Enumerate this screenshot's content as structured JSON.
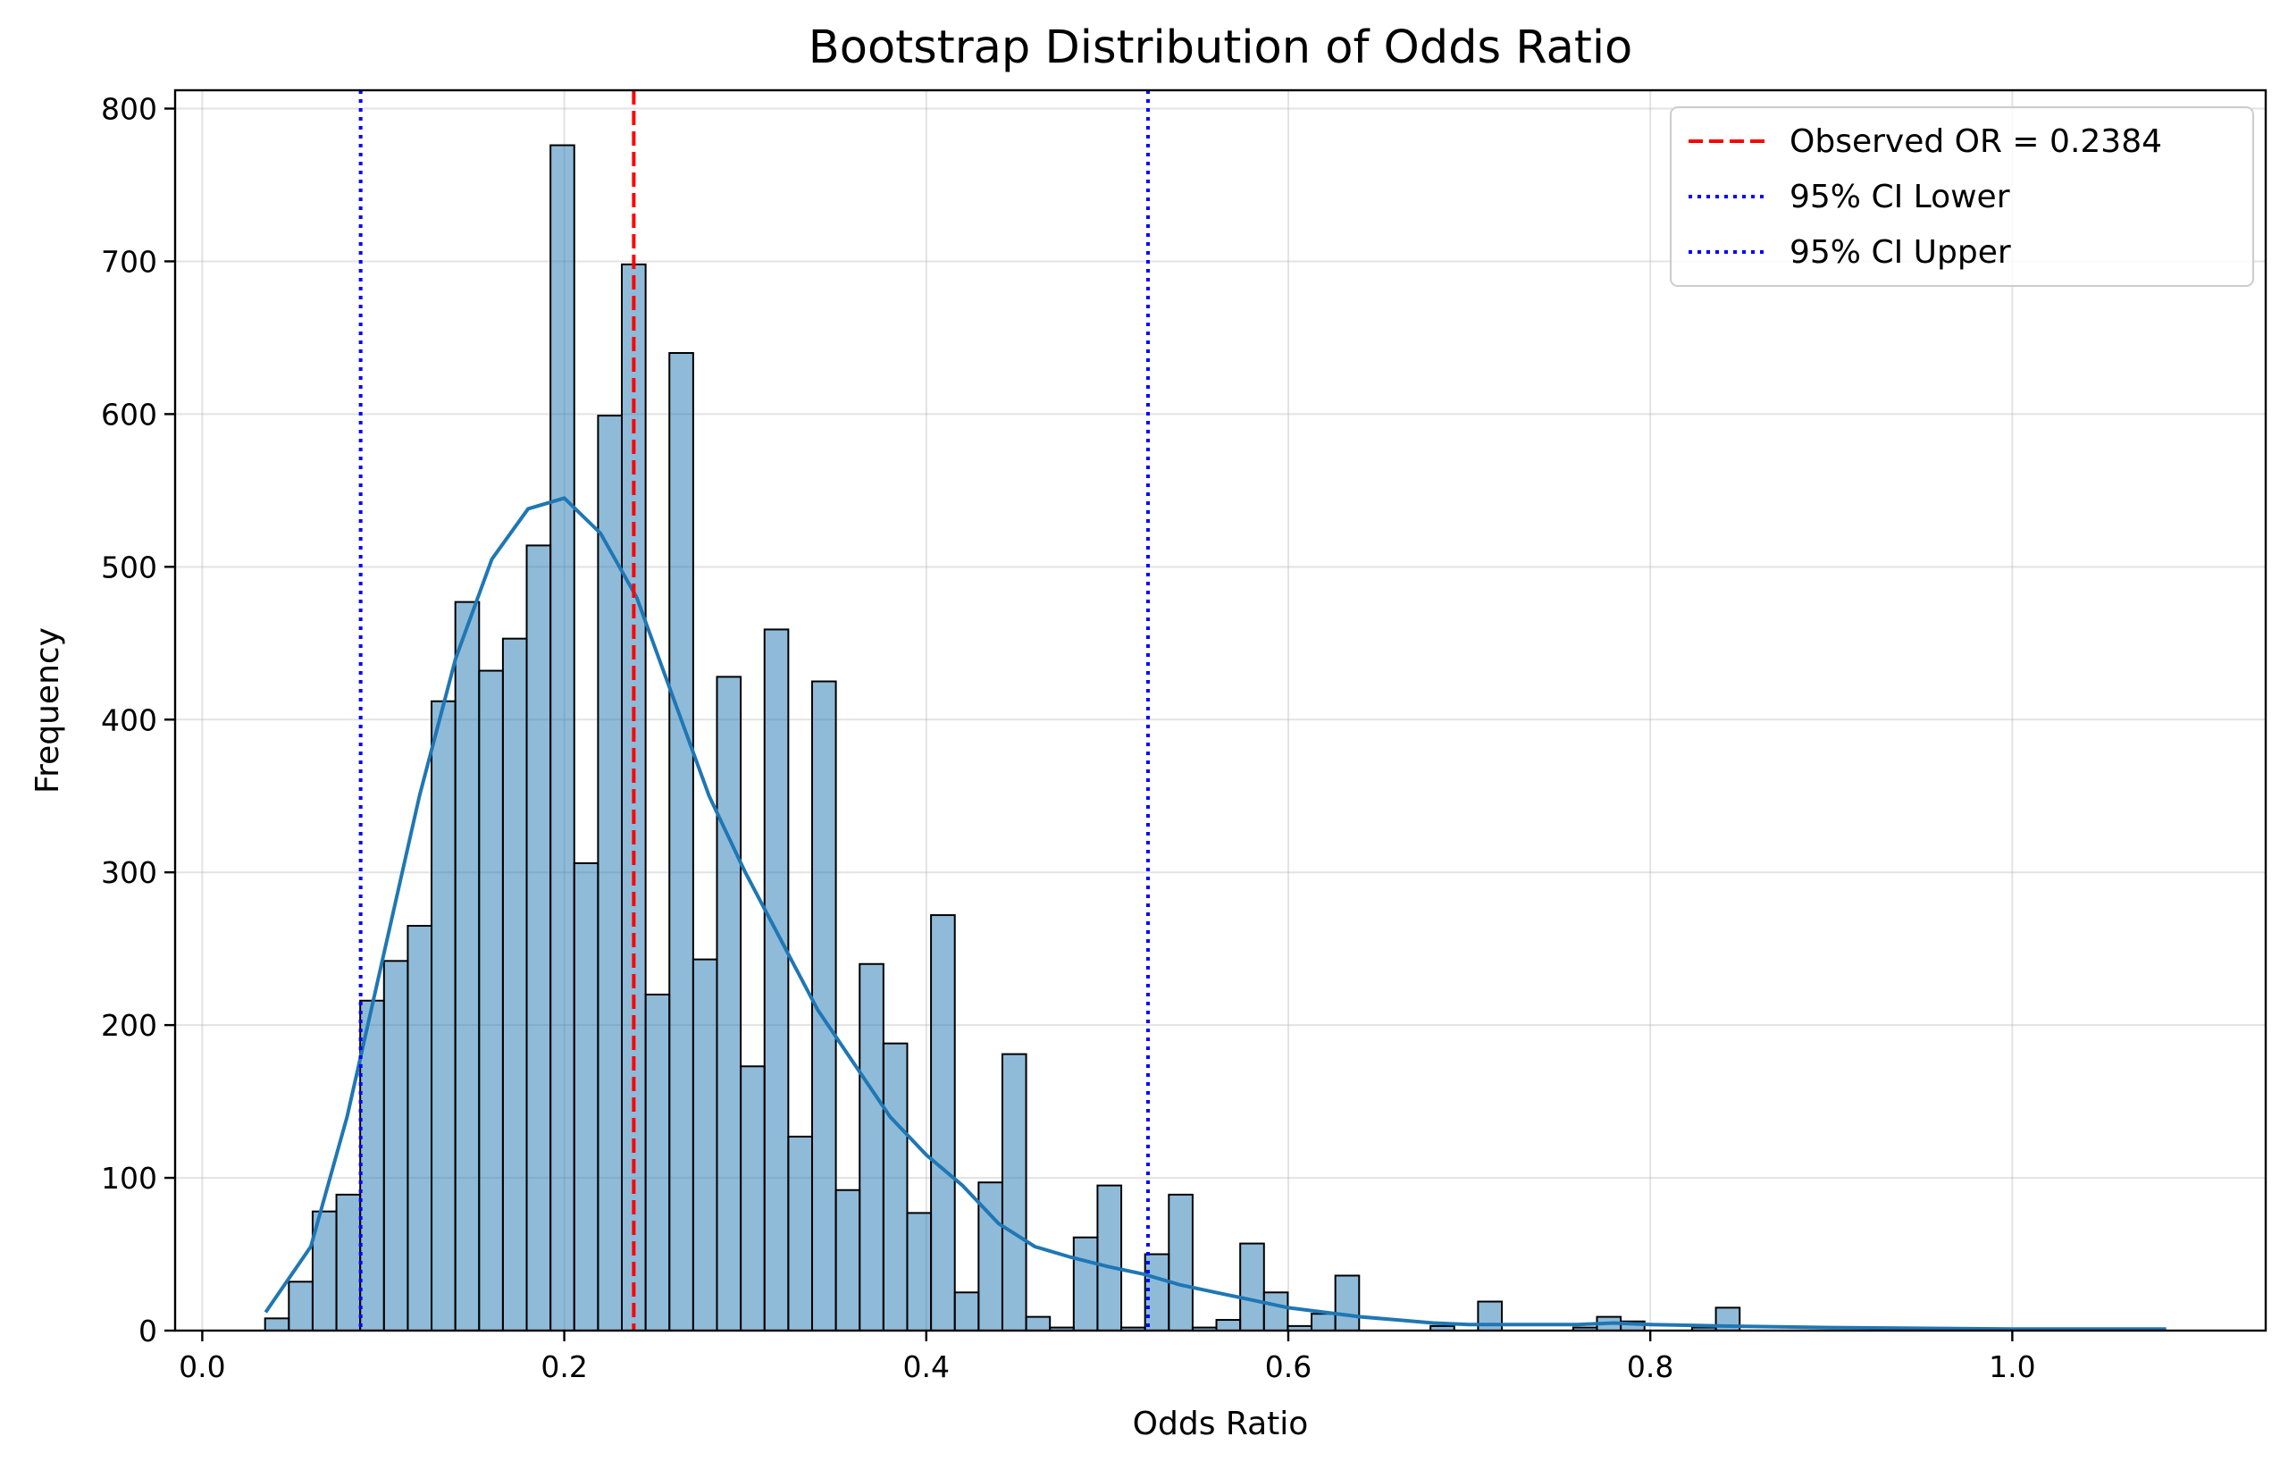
{
  "chart_data": {
    "type": "bar",
    "subtype": "histogram-with-kde",
    "title": "Bootstrap Distribution of Odds Ratio",
    "xlabel": "Odds Ratio",
    "ylabel": "Frequency",
    "xlim": [
      -0.015,
      1.14
    ],
    "ylim": [
      0,
      812
    ],
    "xticks": [
      0.0,
      0.2,
      0.4,
      0.6,
      0.8,
      1.0
    ],
    "xtick_labels": [
      "0.0",
      "0.2",
      "0.4",
      "0.6",
      "0.8",
      "1.0"
    ],
    "yticks": [
      0,
      100,
      200,
      300,
      400,
      500,
      600,
      700,
      800
    ],
    "ytick_labels": [
      "0",
      "100",
      "200",
      "300",
      "400",
      "500",
      "600",
      "700",
      "800"
    ],
    "grid": true,
    "legend_position": "top-right",
    "bar_color": "#1f77b4",
    "bins": {
      "start": 0.0347,
      "width": 0.01314,
      "counts": [
        8,
        32,
        78,
        89,
        216,
        242,
        265,
        412,
        477,
        432,
        453,
        514,
        776,
        306,
        599,
        698,
        220,
        640,
        243,
        428,
        173,
        459,
        127,
        425,
        92,
        240,
        188,
        77,
        272,
        25,
        97,
        181,
        9,
        2,
        61,
        95,
        2,
        50,
        89,
        2,
        7,
        57,
        25,
        3,
        11,
        36,
        0,
        0,
        0,
        3,
        0,
        19,
        0,
        0,
        0,
        2,
        9,
        6,
        0,
        0,
        2,
        15,
        0,
        0,
        0,
        0,
        0,
        0,
        0,
        0,
        0,
        0,
        0,
        0,
        0,
        0,
        0,
        0,
        0,
        0
      ]
    },
    "kde": {
      "color": "#1f77b4",
      "x": [
        0.035,
        0.06,
        0.08,
        0.1,
        0.12,
        0.14,
        0.16,
        0.18,
        0.2,
        0.22,
        0.24,
        0.26,
        0.28,
        0.3,
        0.32,
        0.34,
        0.36,
        0.38,
        0.4,
        0.42,
        0.44,
        0.46,
        0.48,
        0.5,
        0.52,
        0.54,
        0.56,
        0.58,
        0.6,
        0.62,
        0.64,
        0.66,
        0.68,
        0.7,
        0.72,
        0.74,
        0.76,
        0.78,
        0.8,
        0.84,
        0.9,
        1.0,
        1.085
      ],
      "y": [
        12,
        55,
        140,
        245,
        350,
        440,
        505,
        538,
        545,
        522,
        480,
        415,
        350,
        300,
        255,
        210,
        175,
        140,
        115,
        95,
        70,
        55,
        48,
        42,
        37,
        30,
        25,
        20,
        15,
        12,
        9,
        7,
        5,
        4,
        4,
        4,
        4,
        5,
        4,
        3,
        2,
        1,
        1
      ]
    },
    "vlines": [
      {
        "name": "Observed OR = 0.2384",
        "x": 0.2384,
        "color": "#ff0000",
        "style": "dashed"
      },
      {
        "name": "95% CI Lower",
        "x": 0.0875,
        "color": "#0000ff",
        "style": "dotted"
      },
      {
        "name": "95% CI Upper",
        "x": 0.5225,
        "color": "#0000ff",
        "style": "dotted"
      }
    ]
  }
}
